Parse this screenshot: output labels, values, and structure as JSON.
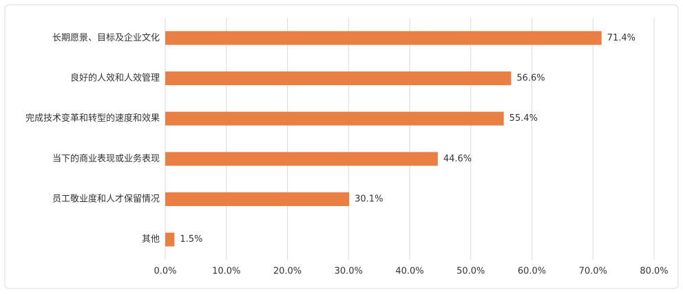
{
  "chart_data": {
    "type": "bar",
    "orientation": "horizontal",
    "categories": [
      "长期愿景、目标及企业文化",
      "良好的人效和人效管理",
      "完成技术变革和转型的速度和效果",
      "当下的商业表现或业务表现",
      "员工敬业度和人才保留情况",
      "其他"
    ],
    "values": [
      71.4,
      56.6,
      55.4,
      44.6,
      30.1,
      1.5
    ],
    "value_labels": [
      "71.4%",
      "56.6%",
      "55.4%",
      "44.6%",
      "30.1%",
      "1.5%"
    ],
    "color": "#e97f43",
    "xlim": [
      0,
      80
    ],
    "xticks": [
      {
        "value": 0,
        "label": "0.0%"
      },
      {
        "value": 10,
        "label": "10.0%"
      },
      {
        "value": 20,
        "label": "20.0%"
      },
      {
        "value": 30,
        "label": "30.0%"
      },
      {
        "value": 40,
        "label": "40.0%"
      },
      {
        "value": 50,
        "label": "50.0%"
      },
      {
        "value": 60,
        "label": "60.0%"
      },
      {
        "value": 70,
        "label": "70.0%"
      },
      {
        "value": 80,
        "label": "80.0%"
      }
    ],
    "grid": true
  }
}
